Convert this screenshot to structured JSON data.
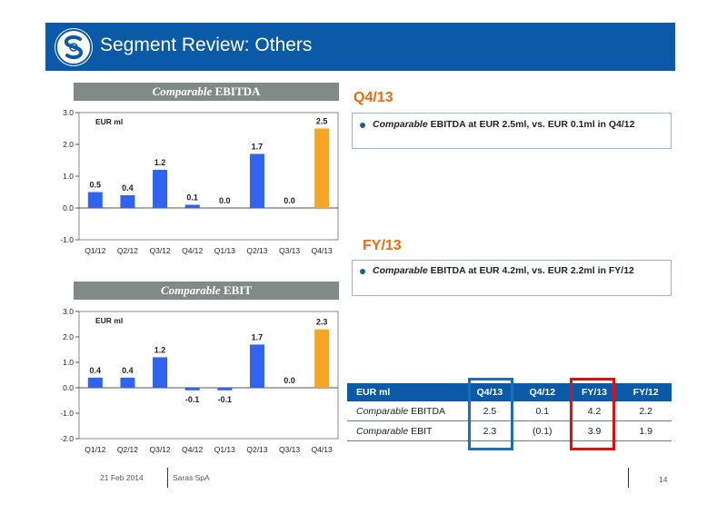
{
  "header": {
    "title": "Segment Review: Others",
    "background_color": "#0a5aa8"
  },
  "charts": {
    "ebitda": {
      "title_italic": "Comparable",
      "title_rest": " EBITDA"
    },
    "ebit": {
      "title_italic": "Comparable",
      "title_rest": " EBIT"
    }
  },
  "chart_data": [
    {
      "type": "bar",
      "title": "Comparable EBITDA",
      "unit_label": "EUR ml",
      "categories": [
        "Q1/12",
        "Q2/12",
        "Q3/12",
        "Q4/12",
        "Q1/13",
        "Q2/13",
        "Q3/13",
        "Q4/13"
      ],
      "values": [
        0.5,
        0.4,
        1.2,
        0.1,
        0.0,
        1.7,
        0.0,
        2.5
      ],
      "labels": [
        "0.5",
        "0.4",
        "1.2",
        "0.1",
        "0.0",
        "1.7",
        "0.0",
        "2.5"
      ],
      "ylim": [
        -1.0,
        3.0
      ],
      "yticks": [
        "-1.0",
        "0.0",
        "1.0",
        "2.0",
        "3.0"
      ],
      "grid": false,
      "bar_color": "#2f63f0",
      "highlight_color": "#f5a623",
      "highlight_index": 7
    },
    {
      "type": "bar",
      "title": "Comparable EBIT",
      "unit_label": "EUR ml",
      "categories": [
        "Q1/12",
        "Q2/12",
        "Q3/12",
        "Q4/12",
        "Q1/13",
        "Q2/13",
        "Q3/13",
        "Q4/13"
      ],
      "values": [
        0.4,
        0.4,
        1.2,
        -0.1,
        -0.1,
        1.7,
        0.0,
        2.3
      ],
      "labels": [
        "0.4",
        "0.4",
        "1.2",
        "-0.1",
        "-0.1",
        "1.7",
        "0.0",
        "2.3"
      ],
      "ylim": [
        -2.0,
        3.0
      ],
      "yticks": [
        "-2.0",
        "-1.0",
        "0.0",
        "1.0",
        "2.0",
        "3.0"
      ],
      "grid": false,
      "bar_color": "#2f63f0",
      "highlight_color": "#f5a623",
      "highlight_index": 7
    }
  ],
  "q4": {
    "title": "Q4/13",
    "bullet_italic": "Comparable",
    "bullet_rest": " EBITDA at EUR 2.5ml, vs. EUR 0.1ml in Q4/12"
  },
  "fy": {
    "title": "FY/13",
    "bullet_italic": "Comparable",
    "bullet_rest": " EBITDA at EUR 4.2ml, vs. EUR 2.2ml in FY/12"
  },
  "table": {
    "headers": [
      "EUR ml",
      "Q4/13",
      "Q4/12",
      "FY/13",
      "FY/12"
    ],
    "rows": [
      {
        "label_italic": "Comparable",
        "label_rest": " EBITDA",
        "values": [
          "2.5",
          "0.1",
          "4.2",
          "2.2"
        ]
      },
      {
        "label_italic": "Comparable",
        "label_rest": " EBIT",
        "values": [
          "2.3",
          "(0.1)",
          "3.9",
          "1.9"
        ]
      }
    ]
  },
  "footer": {
    "date": "21 Feb 2014",
    "company": "Saras SpA",
    "page": "14"
  },
  "colors": {
    "accent_orange": "#ee6a0d",
    "highlight_blue": "#1a6fb8",
    "highlight_red": "#e01010"
  }
}
